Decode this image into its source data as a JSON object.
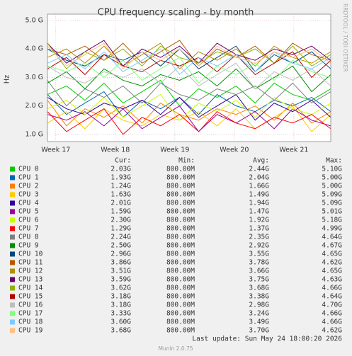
{
  "chart_data": {
    "type": "line",
    "title": "CPU frequency scaling - by month",
    "ylabel": "Hz",
    "side_text": "RRDTOOL / TOBI OETIKER",
    "last_update": "Last update: Sun May 24 18:00:20 2026",
    "footer": "Munin 2.0.75",
    "stats_headers": [
      "Cur:",
      "Min:",
      "Avg:",
      "Max:"
    ],
    "grid": true,
    "xlim": [
      16.86,
      21.62
    ],
    "xticks": [
      {
        "value": 17,
        "label": "Week 17"
      },
      {
        "value": 18,
        "label": "Week 18"
      },
      {
        "value": 19,
        "label": "Week 19"
      },
      {
        "value": 20,
        "label": "Week 20"
      },
      {
        "value": 21,
        "label": "Week 21"
      }
    ],
    "ylim": [
      750000000.0,
      5220000000.0
    ],
    "yticks": [
      {
        "value": 1000000000.0,
        "label": "1.0 G"
      },
      {
        "value": 2000000000.0,
        "label": "2.0 G"
      },
      {
        "value": 3000000000.0,
        "label": "3.0 G"
      },
      {
        "value": 4000000000.0,
        "label": "4.0 G"
      },
      {
        "value": 5000000000.0,
        "label": "5.0 G"
      }
    ],
    "x": [
      16.86,
      17.18,
      17.49,
      17.81,
      18.13,
      18.45,
      18.76,
      19.08,
      19.4,
      19.71,
      20.03,
      20.35,
      20.67,
      20.98,
      21.3,
      21.62
    ],
    "series": [
      {
        "name": "CPU 0",
        "color": "#00cc00",
        "cur": "2.03G",
        "min": "800.00M",
        "avg": "2.44G",
        "max": "5.10G",
        "values": [
          2400000000.0,
          2700000000.0,
          2200000000.0,
          2800000000.0,
          2100000000.0,
          2500000000.0,
          2900000000.0,
          2000000000.0,
          2600000000.0,
          2300000000.0,
          2700000000.0,
          2100000000.0,
          2800000000.0,
          2400000000.0,
          2200000000.0,
          2600000000.0
        ]
      },
      {
        "name": "CPU 1",
        "color": "#0066b3",
        "cur": "1.93G",
        "min": "800.00M",
        "avg": "2.04G",
        "max": "5.00G",
        "values": [
          2400000000.0,
          1700000000.0,
          2100000000.0,
          2500000000.0,
          1600000000.0,
          2200000000.0,
          1900000000.0,
          2300000000.0,
          1700000000.0,
          2400000000.0,
          2000000000.0,
          1800000000.0,
          2200000000.0,
          2000000000.0,
          2300000000.0,
          1800000000.0
        ]
      },
      {
        "name": "CPU 2",
        "color": "#ff8000",
        "cur": "1.24G",
        "min": "800.00M",
        "avg": "1.66G",
        "max": "5.00G",
        "values": [
          2200000000.0,
          1300000000.0,
          1900000000.0,
          1600000000.0,
          2000000000.0,
          1400000000.0,
          2100000000.0,
          1700000000.0,
          1500000000.0,
          1900000000.0,
          1700000000.0,
          2000000000.0,
          1500000000.0,
          2100000000.0,
          1400000000.0,
          1800000000.0
        ]
      },
      {
        "name": "CPU 3",
        "color": "#ffcc00",
        "cur": "1.63G",
        "min": "800.00M",
        "avg": "1.49G",
        "max": "5.09G",
        "values": [
          1400000000.0,
          1800000000.0,
          1200000000.0,
          1900000000.0,
          1500000000.0,
          1300000000.0,
          1700000000.0,
          1500000000.0,
          1800000000.0,
          1300000000.0,
          1900000000.0,
          1200000000.0,
          1600000000.0,
          2000000000.0,
          1100000000.0,
          1700000000.0
        ]
      },
      {
        "name": "CPU 4",
        "color": "#330099",
        "cur": "2.01G",
        "min": "800.00M",
        "avg": "1.94G",
        "max": "5.09G",
        "values": [
          2300000000.0,
          1900000000.0,
          1700000000.0,
          2100000000.0,
          1900000000.0,
          2200000000.0,
          1700000000.0,
          2300000000.0,
          1600000000.0,
          2000000000.0,
          2400000000.0,
          1500000000.0,
          2100000000.0,
          1800000000.0,
          2200000000.0,
          1600000000.0
        ]
      },
      {
        "name": "CPU 5",
        "color": "#990099",
        "cur": "1.59G",
        "min": "800.00M",
        "avg": "1.47G",
        "max": "5.01G",
        "values": [
          1700000000.0,
          1500000000.0,
          1800000000.0,
          1300000000.0,
          1900000000.0,
          1200000000.0,
          1600000000.0,
          2000000000.0,
          1100000000.0,
          1700000000.0,
          1400000000.0,
          1800000000.0,
          1200000000.0,
          1900000000.0,
          1500000000.0,
          1300000000.0
        ]
      },
      {
        "name": "CPU 6",
        "color": "#ccff00",
        "cur": "2.30G",
        "min": "800.00M",
        "avg": "1.92G",
        "max": "5.18G",
        "values": [
          1900000000.0,
          2200000000.0,
          1700000000.0,
          2300000000.0,
          1600000000.0,
          2000000000.0,
          2400000000.0,
          1500000000.0,
          2100000000.0,
          1800000000.0,
          2200000000.0,
          1600000000.0,
          2300000000.0,
          1900000000.0,
          1700000000.0,
          2100000000.0
        ]
      },
      {
        "name": "CPU 7",
        "color": "#ff0000",
        "cur": "1.29G",
        "min": "800.00M",
        "avg": "1.37G",
        "max": "4.99G",
        "values": [
          1800000000.0,
          1100000000.0,
          1500000000.0,
          1900000000.0,
          1000000000.0,
          1600000000.0,
          1300000000.0,
          1700000000.0,
          1100000000.0,
          1800000000.0,
          1400000000.0,
          1200000000.0,
          1600000000.0,
          1400000000.0,
          1700000000.0,
          1200000000.0
        ]
      },
      {
        "name": "CPU 8",
        "color": "#808080",
        "cur": "2.24G",
        "min": "800.00M",
        "avg": "2.35G",
        "max": "4.64G",
        "values": [
          2900000000.0,
          2000000000.0,
          2600000000.0,
          2300000000.0,
          2700000000.0,
          2100000000.0,
          2800000000.0,
          2400000000.0,
          2200000000.0,
          2600000000.0,
          2400000000.0,
          2700000000.0,
          2200000000.0,
          2800000000.0,
          2100000000.0,
          2500000000.0
        ]
      },
      {
        "name": "CPU 9",
        "color": "#008f00",
        "cur": "2.50G",
        "min": "800.00M",
        "avg": "2.92G",
        "max": "4.67G",
        "values": [
          2800000000.0,
          3200000000.0,
          2600000000.0,
          3300000000.0,
          2900000000.0,
          2700000000.0,
          3100000000.0,
          2900000000.0,
          3200000000.0,
          2700000000.0,
          3300000000.0,
          2600000000.0,
          3000000000.0,
          3400000000.0,
          2500000000.0,
          3100000000.0
        ]
      },
      {
        "name": "CPU 10",
        "color": "#00487d",
        "cur": "2.96G",
        "min": "800.00M",
        "avg": "3.55G",
        "max": "4.65G",
        "values": [
          4000000000.0,
          3600000000.0,
          3400000000.0,
          3800000000.0,
          3600000000.0,
          3900000000.0,
          3400000000.0,
          4000000000.0,
          3300000000.0,
          3700000000.0,
          4100000000.0,
          3200000000.0,
          3800000000.0,
          3500000000.0,
          3900000000.0,
          3300000000.0
        ]
      },
      {
        "name": "CPU 11",
        "color": "#b35a00",
        "cur": "3.86G",
        "min": "800.00M",
        "avg": "3.78G",
        "max": "4.62G",
        "values": [
          4000000000.0,
          3800000000.0,
          4100000000.0,
          3600000000.0,
          4200000000.0,
          3500000000.0,
          3900000000.0,
          4300000000.0,
          3400000000.0,
          4000000000.0,
          3700000000.0,
          4100000000.0,
          3500000000.0,
          4200000000.0,
          3800000000.0,
          3600000000.0
        ]
      },
      {
        "name": "CPU 12",
        "color": "#b38f00",
        "cur": "3.51G",
        "min": "800.00M",
        "avg": "3.66G",
        "max": "4.65G",
        "values": [
          3700000000.0,
          4000000000.0,
          3500000000.0,
          4100000000.0,
          3400000000.0,
          3800000000.0,
          4200000000.0,
          3300000000.0,
          3900000000.0,
          3600000000.0,
          4000000000.0,
          3400000000.0,
          4100000000.0,
          3700000000.0,
          3500000000.0,
          3900000000.0
        ]
      },
      {
        "name": "CPU 13",
        "color": "#6b006b",
        "cur": "3.59G",
        "min": "800.00M",
        "avg": "3.75G",
        "max": "4.63G",
        "values": [
          4200000000.0,
          3500000000.0,
          3900000000.0,
          4300000000.0,
          3400000000.0,
          4000000000.0,
          3700000000.0,
          4100000000.0,
          3500000000.0,
          4200000000.0,
          3800000000.0,
          3600000000.0,
          4000000000.0,
          3800000000.0,
          4100000000.0,
          3600000000.0
        ]
      },
      {
        "name": "CPU 14",
        "color": "#8fb300",
        "cur": "3.62G",
        "min": "800.00M",
        "avg": "3.68G",
        "max": "4.66G",
        "values": [
          4200000000.0,
          3300000000.0,
          3900000000.0,
          3600000000.0,
          4000000000.0,
          3400000000.0,
          4100000000.0,
          3700000000.0,
          3500000000.0,
          3900000000.0,
          3700000000.0,
          4000000000.0,
          3500000000.0,
          4100000000.0,
          3400000000.0,
          3800000000.0
        ]
      },
      {
        "name": "CPU 15",
        "color": "#b30000",
        "cur": "3.18G",
        "min": "800.00M",
        "avg": "3.38G",
        "max": "4.64G",
        "values": [
          3300000000.0,
          3700000000.0,
          3100000000.0,
          3800000000.0,
          3400000000.0,
          3200000000.0,
          3600000000.0,
          3400000000.0,
          3700000000.0,
          3200000000.0,
          3800000000.0,
          3100000000.0,
          3500000000.0,
          3900000000.0,
          3000000000.0,
          3600000000.0
        ]
      },
      {
        "name": "CPU 16",
        "color": "#bebebe",
        "cur": "3.18G",
        "min": "800.00M",
        "avg": "2.98G",
        "max": "4.70G",
        "values": [
          3400000000.0,
          3000000000.0,
          2800000000.0,
          3200000000.0,
          3000000000.0,
          3300000000.0,
          2800000000.0,
          3400000000.0,
          2700000000.0,
          3100000000.0,
          3500000000.0,
          2600000000.0,
          3200000000.0,
          2900000000.0,
          3300000000.0,
          2700000000.0
        ]
      },
      {
        "name": "CPU 17",
        "color": "#80ff80",
        "cur": "3.33G",
        "min": "800.00M",
        "avg": "3.24G",
        "max": "4.66G",
        "values": [
          3400000000.0,
          3200000000.0,
          3500000000.0,
          3000000000.0,
          3600000000.0,
          2900000000.0,
          3300000000.0,
          3700000000.0,
          2800000000.0,
          3400000000.0,
          3100000000.0,
          3500000000.0,
          2900000000.0,
          3600000000.0,
          3200000000.0,
          3000000000.0
        ]
      },
      {
        "name": "CPU 18",
        "color": "#80c9ff",
        "cur": "3.60G",
        "min": "800.00M",
        "avg": "3.49G",
        "max": "4.66G",
        "values": [
          3500000000.0,
          3800000000.0,
          3300000000.0,
          3900000000.0,
          3200000000.0,
          3600000000.0,
          4000000000.0,
          3100000000.0,
          3700000000.0,
          3400000000.0,
          3800000000.0,
          3200000000.0,
          3900000000.0,
          3500000000.0,
          3300000000.0,
          3700000000.0
        ]
      },
      {
        "name": "CPU 19",
        "color": "#ffc080",
        "cur": "3.68G",
        "min": "800.00M",
        "avg": "3.70G",
        "max": "4.62G",
        "values": [
          4100000000.0,
          3400000000.0,
          3800000000.0,
          4200000000.0,
          3300000000.0,
          3900000000.0,
          3600000000.0,
          4000000000.0,
          3400000000.0,
          4100000000.0,
          3700000000.0,
          3500000000.0,
          3900000000.0,
          3700000000.0,
          4000000000.0,
          3500000000.0
        ]
      }
    ]
  }
}
